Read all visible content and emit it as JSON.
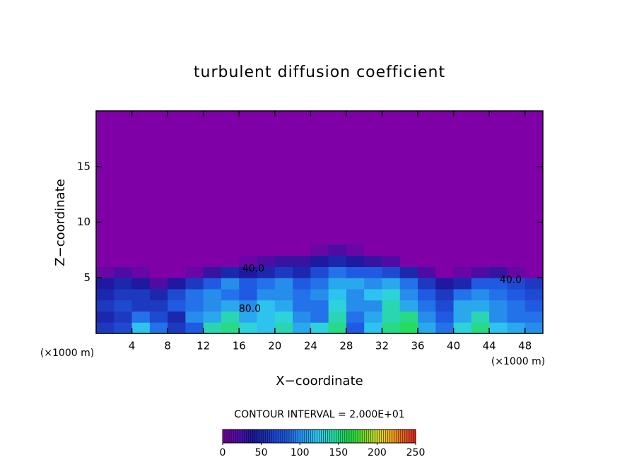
{
  "chart_data": {
    "type": "heatmap",
    "title": "turbulent diffusion coefficient",
    "xlabel": "X−coordinate",
    "ylabel": "Z−coordinate",
    "x_unit": "(×1000 m)",
    "y_unit": "(×1000 m)",
    "footer": "CONTOUR INTERVAL = 2.000E+01",
    "xlim": [
      0,
      50
    ],
    "ylim": [
      0,
      20
    ],
    "xticks": [
      4,
      8,
      12,
      16,
      20,
      24,
      28,
      32,
      36,
      40,
      44,
      48
    ],
    "yticks": [
      5,
      10,
      15
    ],
    "x_edges": [
      0,
      2,
      4,
      6,
      8,
      10,
      12,
      14,
      16,
      18,
      20,
      22,
      24,
      26,
      28,
      30,
      32,
      34,
      36,
      38,
      40,
      42,
      44,
      46,
      48,
      50
    ],
    "y_edges": [
      0,
      1,
      2,
      3,
      4,
      5,
      6,
      7,
      8
    ],
    "z": [
      [
        60,
        70,
        120,
        90,
        60,
        80,
        140,
        150,
        130,
        120,
        140,
        110,
        130,
        150,
        80,
        120,
        150,
        160,
        110,
        90,
        130,
        150,
        120,
        110,
        100
      ],
      [
        50,
        60,
        90,
        70,
        50,
        100,
        110,
        140,
        110,
        120,
        130,
        100,
        90,
        140,
        90,
        110,
        140,
        150,
        100,
        80,
        110,
        140,
        100,
        90,
        90
      ],
      [
        60,
        70,
        60,
        60,
        80,
        90,
        100,
        110,
        100,
        120,
        110,
        90,
        90,
        130,
        100,
        100,
        140,
        110,
        90,
        70,
        110,
        110,
        100,
        90,
        80
      ],
      [
        50,
        60,
        60,
        50,
        70,
        90,
        100,
        90,
        80,
        100,
        100,
        90,
        100,
        120,
        100,
        120,
        130,
        100,
        80,
        60,
        90,
        100,
        90,
        80,
        70
      ],
      [
        40,
        50,
        40,
        20,
        40,
        60,
        80,
        100,
        80,
        90,
        100,
        80,
        90,
        110,
        110,
        100,
        110,
        90,
        60,
        40,
        50,
        80,
        80,
        70,
        60
      ],
      [
        10,
        20,
        10,
        0,
        0,
        10,
        30,
        50,
        40,
        50,
        60,
        50,
        70,
        90,
        80,
        80,
        70,
        50,
        20,
        0,
        10,
        20,
        30,
        10,
        0
      ],
      [
        0,
        0,
        0,
        0,
        0,
        0,
        0,
        0,
        10,
        20,
        30,
        30,
        40,
        50,
        40,
        30,
        20,
        0,
        0,
        0,
        0,
        0,
        0,
        0,
        0
      ],
      [
        0,
        0,
        0,
        0,
        0,
        0,
        0,
        0,
        0,
        0,
        0,
        0,
        10,
        20,
        10,
        0,
        0,
        0,
        0,
        0,
        0,
        0,
        0,
        0,
        0
      ]
    ],
    "background": "#8000a8",
    "clim": [
      0,
      250
    ],
    "cticks": [
      0,
      50,
      100,
      150,
      200,
      250
    ],
    "colormap": [
      "#8000a8",
      "#1a1aa0",
      "#2060e8",
      "#30d0f0",
      "#20e040",
      "#f0d020",
      "#e02020"
    ],
    "annotations": [
      {
        "text": "40.0",
        "x": 17.6,
        "y": 5.8
      },
      {
        "text": "40.0",
        "x": 46.4,
        "y": 4.8
      },
      {
        "text": "80.0",
        "x": 17.2,
        "y": 2.2
      }
    ]
  }
}
